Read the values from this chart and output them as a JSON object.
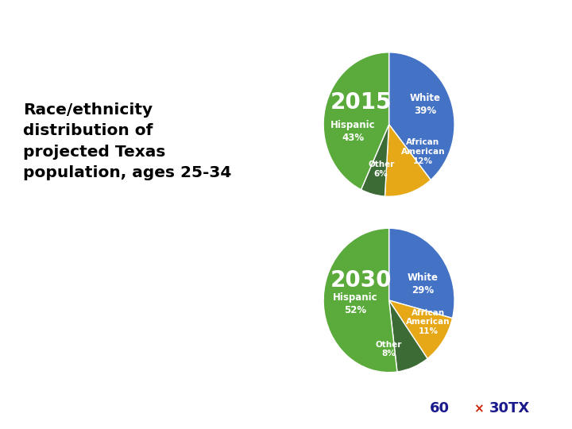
{
  "title_text": "Race/ethnicity\ndistribution of\nprojected Texas\npopulation, ages 25-34",
  "top_bar_color": "#2e4099",
  "bottom_bar_color": "#a02030",
  "background_color": "#ffffff",
  "pie_2015": {
    "year": "2015",
    "values": [
      39,
      12,
      6,
      43
    ],
    "colors": [
      "#4472c4",
      "#e6a817",
      "#3d6b35",
      "#5aab3c"
    ],
    "startangle": 90
  },
  "pie_2030": {
    "year": "2030",
    "values": [
      29,
      11,
      8,
      52
    ],
    "colors": [
      "#4472c4",
      "#e6a817",
      "#3d6b35",
      "#5aab3c"
    ],
    "startangle": 90
  }
}
